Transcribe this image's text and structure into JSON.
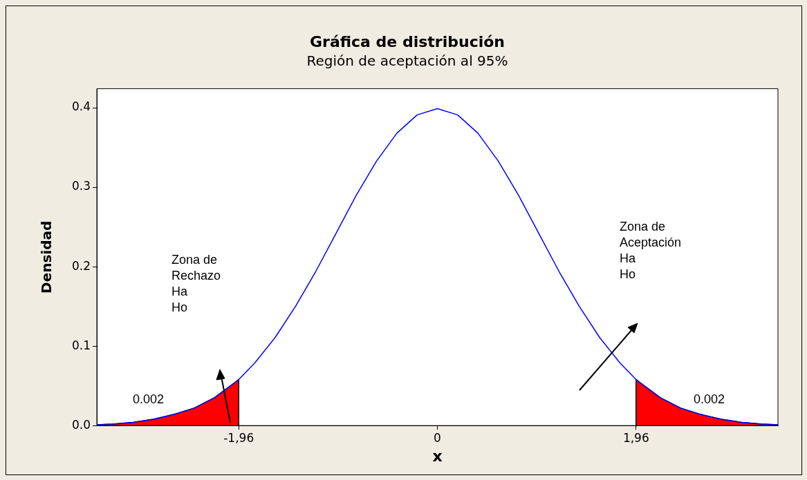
{
  "chart_data": {
    "type": "line",
    "title": "Gráfica de distribución",
    "subtitle": "Región de aceptación al 95%",
    "xlabel": "x",
    "ylabel": "Densidad",
    "xlim": [
      -3.36,
      3.36
    ],
    "ylim": [
      0,
      0.424
    ],
    "xticks": [
      {
        "value": -1.96,
        "label": "-1,96"
      },
      0,
      {
        "value": 1.96,
        "label": "1,96"
      }
    ],
    "yticks": [
      {
        "value": 0,
        "label": "0.0"
      },
      0.1,
      0.2,
      0.3,
      0.4
    ],
    "legend": false,
    "series": [
      {
        "type": "area",
        "color": "#ff0000",
        "x": [
          -3.36,
          -3.2,
          -3.0,
          -2.8,
          -2.6,
          -2.4,
          -2.2,
          -2.0,
          -1.96,
          -1.96
        ],
        "values": [
          0.001,
          0.002,
          0.004,
          0.008,
          0.014,
          0.022,
          0.035,
          0.054,
          0.058,
          0
        ]
      },
      {
        "type": "area",
        "color": "#ff0000",
        "x": [
          1.96,
          1.96,
          2.0,
          2.2,
          2.4,
          2.6,
          2.8,
          3.0,
          3.2,
          3.36
        ],
        "values": [
          0,
          0.058,
          0.054,
          0.035,
          0.022,
          0.014,
          0.008,
          0.004,
          0.002,
          0.001
        ]
      },
      {
        "color": "#0000ff",
        "x": [
          -3.36,
          -3.2,
          -3.0,
          -2.8,
          -2.6,
          -2.4,
          -2.2,
          -2.0,
          -1.96,
          -1.8,
          -1.6,
          -1.4,
          -1.2,
          -1.0,
          -0.8,
          -0.6,
          -0.4,
          -0.2,
          0,
          0.2,
          0.4,
          0.6,
          0.8,
          1.0,
          1.2,
          1.4,
          1.6,
          1.8,
          1.96,
          2.0,
          2.2,
          2.4,
          2.6,
          2.8,
          3.0,
          3.2,
          3.36
        ],
        "values": [
          0.001,
          0.002,
          0.004,
          0.008,
          0.014,
          0.022,
          0.035,
          0.054,
          0.058,
          0.079,
          0.111,
          0.15,
          0.194,
          0.242,
          0.29,
          0.333,
          0.368,
          0.391,
          0.399,
          0.391,
          0.368,
          0.333,
          0.29,
          0.242,
          0.194,
          0.15,
          0.111,
          0.079,
          0.058,
          0.054,
          0.035,
          0.022,
          0.014,
          0.008,
          0.004,
          0.002,
          0.001
        ]
      }
    ],
    "annotations": [
      "0.002",
      "0.002",
      "Zona de\nRechazo\nHa\nHo",
      "Zona de\nAceptación\nHa\nHo"
    ]
  }
}
